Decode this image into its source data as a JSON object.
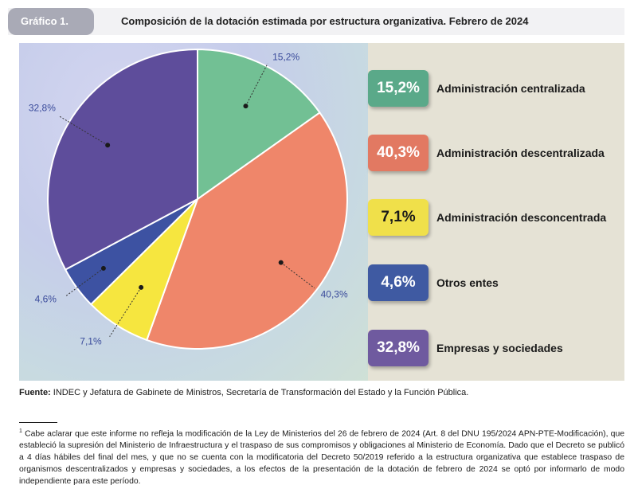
{
  "header": {
    "tab_label": "Gráfico 1.",
    "title": "Composición de la dotación estimada por estructura organizativa. Febrero de 2024"
  },
  "chart_data": {
    "type": "pie",
    "title": "Composición de la dotación estimada por estructura organizativa. Febrero de 2024",
    "slices": [
      {
        "name": "Administración centralizada",
        "value": 15.2,
        "label": "15,2%",
        "color": "#72c094",
        "text_color": "#ffffff"
      },
      {
        "name": "Administración descentralizada",
        "value": 40.3,
        "label": "40,3%",
        "color": "#ef866a",
        "text_color": "#ffffff"
      },
      {
        "name": "Administración desconcentrada",
        "value": 7.1,
        "label": "7,1%",
        "color": "#f6e63f",
        "text_color": "#1a1a1a"
      },
      {
        "name": "Otros entes",
        "value": 4.6,
        "label": "4,6%",
        "color": "#3d52a2",
        "text_color": "#ffffff"
      },
      {
        "name": "Empresas y sociedades",
        "value": 32.8,
        "label": "32,8%",
        "color": "#5e4d9b",
        "text_color": "#ffffff"
      }
    ],
    "start_angle": "12 o'clock",
    "direction": "clockwise",
    "legend_position": "right"
  },
  "legend_box_colors": [
    "#5aa989",
    "#e27962",
    "#f0e04a",
    "#3f5aa2",
    "#6f5a9f"
  ],
  "source": {
    "label": "Fuente:",
    "text": "INDEC y Jefatura de Gabinete de Ministros, Secretaría de Transformación del Estado y la Función Pública."
  },
  "footnote": {
    "marker": "1",
    "text": "Cabe aclarar que este informe no refleja la modificación de la Ley de Ministerios del 26 de febrero de 2024 (Art. 8 del DNU 195/2024 APN-PTE-Modificación), que estableció la supresión del Ministerio de Infraestructura y el traspaso de sus compromisos y obligaciones al Ministerio de Economía. Dado que el Decreto se publicó a 4 días hábiles del final del mes, y que no se cuenta con la modificatoria del Decreto 50/2019 referido a la estructura organizativa que establece traspaso de organismos descentralizados y empresas y sociedades, a los efectos de la presentación de la dotación de febrero de 2024 se optó por informarlo de modo independiente para este período."
  }
}
